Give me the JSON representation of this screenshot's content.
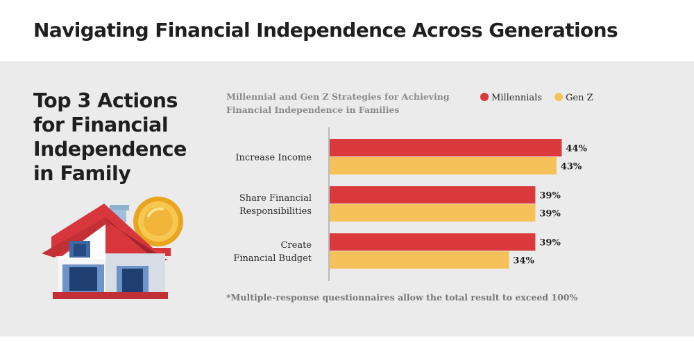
{
  "header": {
    "title": "Navigating Financial Independence Across Generations"
  },
  "side_panel": {
    "title_lines": [
      "Top 3 Actions",
      "for Financial",
      "Independence",
      "in Family"
    ]
  },
  "chart_data": {
    "type": "bar",
    "orientation": "horizontal",
    "title": "Millennial and Gen Z Strategies for Achieving Financial Independence in Families",
    "title_lines": [
      "Millennial and Gen Z Strategies for Achieving",
      "Financial Independence in Families"
    ],
    "categories": [
      "Increase Income",
      "Share Financial Responsibilities",
      "Create Financial Budget"
    ],
    "category_lines": [
      [
        "Increase Income"
      ],
      [
        "Share Financial",
        "Responsibilities"
      ],
      [
        "Create",
        "Financial Budget"
      ]
    ],
    "series": [
      {
        "name": "Millennials",
        "values": [
          44,
          39,
          39
        ],
        "color": "#db3a3d"
      },
      {
        "name": "Gen Z",
        "values": [
          43,
          39,
          34
        ],
        "color": "#f5c158"
      }
    ],
    "value_suffix": "%",
    "xlim": [
      0,
      50
    ],
    "legend_position": "top-right",
    "grid": false,
    "footnote": "*Multiple-response questionnaires allow the total result to exceed 100%"
  }
}
